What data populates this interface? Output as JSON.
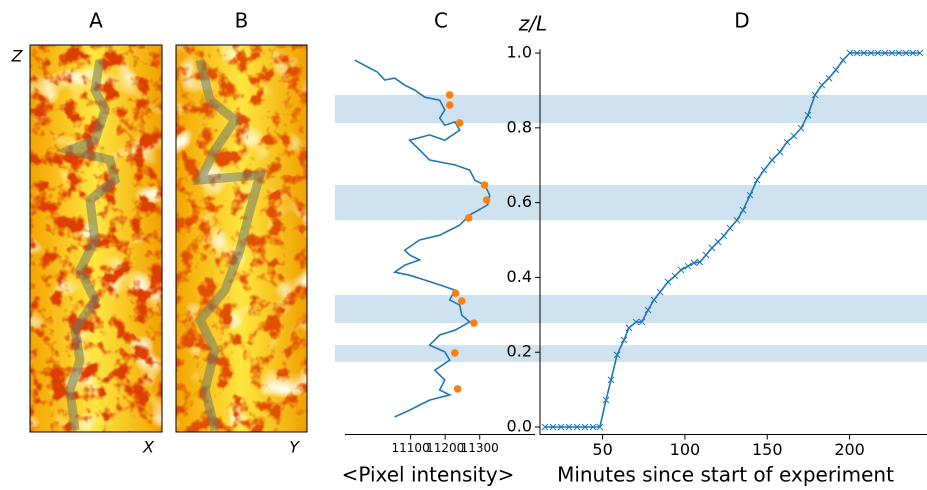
{
  "chart_data": [
    {
      "type": "image",
      "title": "A",
      "xlabel": "X",
      "ylabel": "Z"
    },
    {
      "type": "image",
      "title": "B",
      "xlabel": "Y"
    },
    {
      "type": "line",
      "title": "C",
      "xlabel": "<Pixel intensity>",
      "color": "#1f77b4",
      "x": [
        10938,
        10981,
        11004,
        11025,
        11054,
        11083,
        11112,
        11141,
        11184,
        11199,
        11184,
        11199,
        11228,
        11242,
        11199,
        11155,
        11097,
        11126,
        11155,
        11228,
        11271,
        11286,
        11315,
        11329,
        11323,
        11271,
        11242,
        11184,
        11126,
        11083,
        11097,
        11126,
        11083,
        11054,
        11097,
        11141,
        11184,
        11228,
        11213,
        11242,
        11248,
        11271,
        11228,
        11184,
        11155,
        11199,
        11213,
        11170,
        11199,
        11184,
        11213,
        11155,
        11126,
        11097,
        11054
      ],
      "values": [
        0.981,
        0.96,
        0.949,
        0.928,
        0.933,
        0.914,
        0.901,
        0.882,
        0.874,
        0.848,
        0.826,
        0.807,
        0.816,
        0.794,
        0.767,
        0.781,
        0.767,
        0.741,
        0.714,
        0.701,
        0.687,
        0.66,
        0.647,
        0.62,
        0.594,
        0.567,
        0.54,
        0.513,
        0.5,
        0.473,
        0.46,
        0.447,
        0.433,
        0.414,
        0.406,
        0.393,
        0.38,
        0.366,
        0.34,
        0.326,
        0.299,
        0.281,
        0.259,
        0.246,
        0.219,
        0.201,
        0.179,
        0.152,
        0.126,
        0.099,
        0.086,
        0.072,
        0.059,
        0.045,
        0.027
      ],
      "points": {
        "color": "#ff7f0e",
        "x": [
          11213,
          11213,
          11242,
          11314,
          11320,
          11268,
          11230,
          11248,
          11283,
          11228,
          11236
        ],
        "values": [
          0.888,
          0.861,
          0.813,
          0.647,
          0.607,
          0.559,
          0.358,
          0.337,
          0.278,
          0.198,
          0.102
        ]
      },
      "xlim": [
        10910,
        11460
      ],
      "xticks": [
        11100,
        11200,
        11300
      ],
      "ylim": [
        -0.02,
        1.01
      ]
    },
    {
      "type": "line",
      "title": "D",
      "ylabel": "z/L",
      "xlabel": "Minutes since start of experiment",
      "color": "#1f77b4",
      "marker": "x",
      "x": [
        15.0,
        19.9,
        24.8,
        29.6,
        34.5,
        39.3,
        44.2,
        48.4,
        52.1,
        55.1,
        58.8,
        63.0,
        66.0,
        70.3,
        73.9,
        77.6,
        81.2,
        84.9,
        89.7,
        94.0,
        97.6,
        101.9,
        105.5,
        109.1,
        112.8,
        116.4,
        120.1,
        123.7,
        127.4,
        131.6,
        135.3,
        139.5,
        143.8,
        148.0,
        152.9,
        157.7,
        162.0,
        166.2,
        170.5,
        174.7,
        179.0,
        183.2,
        187.5,
        191.7,
        196.0,
        200.2,
        204.5,
        208.7,
        213.0,
        217.2,
        221.5,
        225.7,
        229.9,
        234.2,
        238.4,
        242.7
      ],
      "values": [
        0,
        0,
        0,
        0,
        0,
        0,
        0,
        0,
        0.072,
        0.126,
        0.193,
        0.233,
        0.265,
        0.281,
        0.281,
        0.313,
        0.34,
        0.361,
        0.388,
        0.404,
        0.42,
        0.43,
        0.439,
        0.441,
        0.46,
        0.479,
        0.495,
        0.511,
        0.532,
        0.553,
        0.58,
        0.62,
        0.66,
        0.687,
        0.714,
        0.735,
        0.762,
        0.778,
        0.799,
        0.834,
        0.888,
        0.914,
        0.933,
        0.955,
        0.981,
        1,
        1,
        1,
        1,
        1,
        1,
        1,
        1,
        1,
        1,
        1
      ],
      "xlim": [
        12,
        247
      ],
      "xticks": [
        50,
        100,
        150,
        200
      ],
      "ylim": [
        -0.02,
        1.01
      ],
      "yticks": [
        {
          "value": 0,
          "label": "0.0"
        },
        0.2,
        0.4,
        0.6,
        0.8,
        {
          "value": 1,
          "label": "1.0"
        }
      ],
      "bands": [
        {
          "from": 0.813,
          "to": 0.888
        },
        {
          "from": 0.553,
          "to": 0.647
        },
        {
          "from": 0.278,
          "to": 0.353
        },
        {
          "from": 0.174,
          "to": 0.219
        }
      ],
      "band_color": "#cfe2f0"
    }
  ]
}
